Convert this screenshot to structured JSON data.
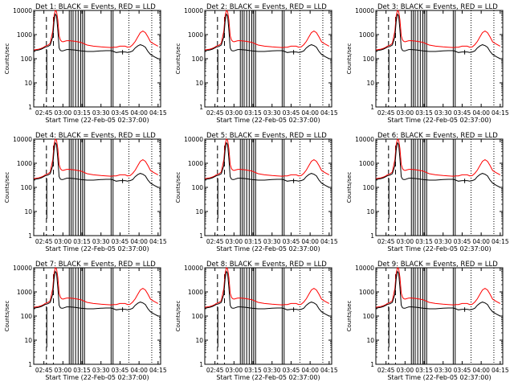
{
  "chart_data": {
    "type": "line",
    "layout": "3x3 grid",
    "xlabel": "Start Time (22-Feb-05 02:37:00)",
    "ylabel": "Counts/sec",
    "yscale": "log",
    "ylim": [
      1,
      10000
    ],
    "yticks": [
      {
        "value": 1,
        "label": "1"
      },
      {
        "value": 10,
        "label": "10"
      },
      {
        "value": 100,
        "label": "100"
      },
      {
        "value": 1000,
        "label": "1000"
      },
      {
        "value": 10000,
        "label": "10000"
      }
    ],
    "x_units": "minutes after 02:37:00",
    "xlim": [
      0,
      100
    ],
    "xticks": [
      {
        "value": 8,
        "label": "02:45"
      },
      {
        "value": 23,
        "label": "03:00"
      },
      {
        "value": 38,
        "label": "03:15"
      },
      {
        "value": 53,
        "label": "03:30"
      },
      {
        "value": 68,
        "label": "03:45"
      },
      {
        "value": 83,
        "label": "04:00"
      },
      {
        "value": 98,
        "label": "04:15"
      }
    ],
    "series_colors": {
      "events": "#000000",
      "lld": "#ff0000"
    },
    "panels": [
      {
        "title": "Det 1: BLACK = Events, RED = LLD"
      },
      {
        "title": "Det 2: BLACK = Events, RED = LLD"
      },
      {
        "title": "Det 3: BLACK = Events, RED = LLD"
      },
      {
        "title": "Det 4: BLACK = Events, RED = LLD"
      },
      {
        "title": "Det 5: BLACK = Events, RED = LLD"
      },
      {
        "title": "Det 6: BLACK = Events, RED = LLD"
      },
      {
        "title": "Det 7: BLACK = Events, RED = LLD"
      },
      {
        "title": "Det 8: BLACK = Events, RED = LLD"
      },
      {
        "title": "Det 9: BLACK = Events, RED = LLD"
      }
    ],
    "series": [
      {
        "name": "LLD (red)",
        "x": [
          0,
          4,
          6,
          8,
          9,
          11,
          13,
          15,
          16,
          17,
          18,
          19,
          20,
          21,
          22,
          23,
          24,
          26,
          28,
          32,
          37,
          42,
          47,
          53,
          57,
          61,
          63,
          65,
          68,
          72,
          74,
          76,
          78,
          80,
          82,
          84,
          86,
          88,
          90,
          92,
          95,
          98
        ],
        "values": [
          230,
          250,
          270,
          300,
          330,
          360,
          430,
          1400,
          6000,
          10000,
          9000,
          4000,
          900,
          600,
          520,
          500,
          520,
          560,
          560,
          530,
          480,
          370,
          330,
          310,
          300,
          290,
          300,
          300,
          330,
          330,
          300,
          310,
          380,
          520,
          800,
          1200,
          1400,
          1200,
          800,
          500,
          400,
          330
        ]
      },
      {
        "name": "Events (black)",
        "x": [
          0,
          4,
          6,
          8,
          9,
          11,
          13,
          15,
          16,
          17,
          18,
          19,
          20,
          21,
          22,
          23,
          24,
          26,
          28,
          32,
          37,
          42,
          47,
          53,
          57,
          61,
          63,
          65,
          68,
          72,
          74,
          76,
          78,
          80,
          82,
          84,
          86,
          88,
          90,
          92,
          95,
          98
        ],
        "values": [
          210,
          230,
          250,
          280,
          300,
          320,
          370,
          800,
          3500,
          7000,
          6000,
          1500,
          280,
          220,
          210,
          210,
          220,
          240,
          240,
          230,
          210,
          200,
          200,
          210,
          215,
          215,
          200,
          180,
          190,
          190,
          180,
          190,
          210,
          280,
          340,
          380,
          350,
          300,
          200,
          150,
          120,
          100
        ]
      }
    ],
    "annotations": {
      "solid_vertical_lines_x": [
        28,
        29.5,
        31,
        33,
        35,
        37,
        38.5,
        40,
        61,
        62.5
      ],
      "dashed_vertical_lines_x": [
        10,
        15.5
      ],
      "dotted_vertical_lines_x": [
        75,
        93
      ],
      "dropout_dips_x": [
        10.3,
        70
      ]
    }
  }
}
